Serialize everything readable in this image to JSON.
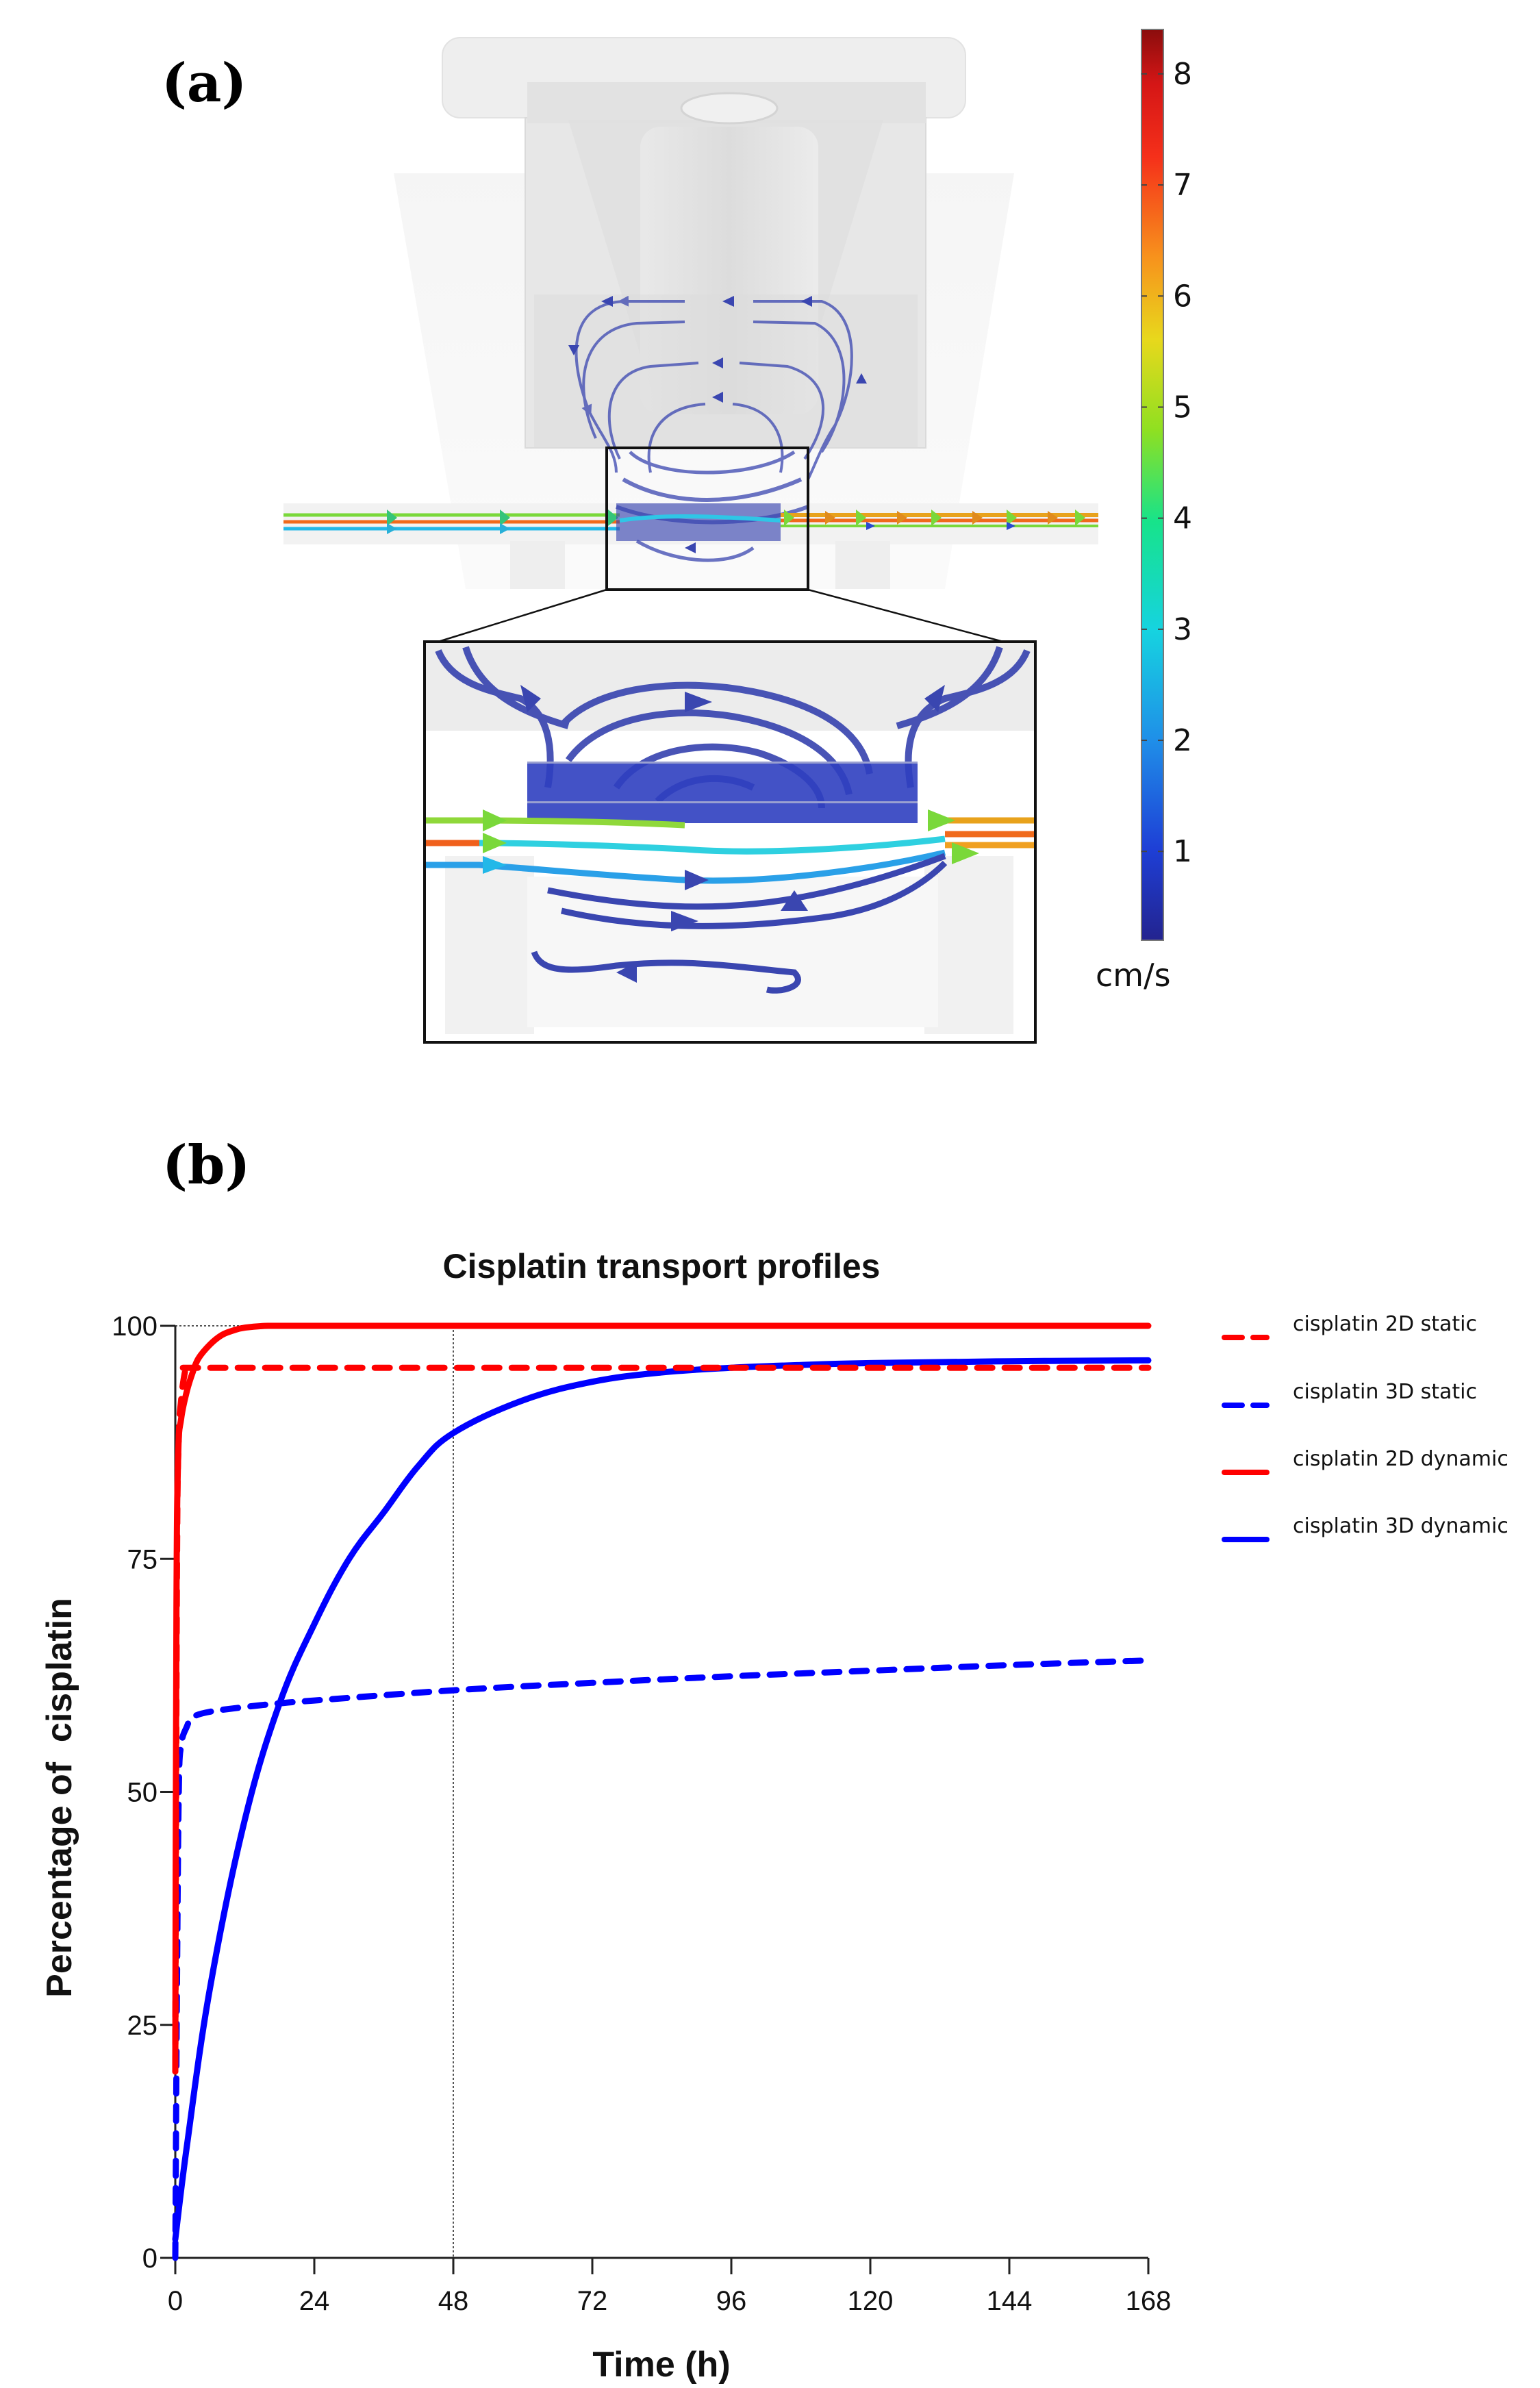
{
  "panel_a": {
    "label": "(a)",
    "colorbar": {
      "unit": "cm/s",
      "ticks": [
        "8",
        "7",
        "6",
        "5",
        "4",
        "3",
        "2",
        "1"
      ],
      "min": 0.2,
      "max": 8.4,
      "colors": [
        "#23238f",
        "#1e3fd6",
        "#1f8fe8",
        "#16d3e0",
        "#17e38a",
        "#8fe021",
        "#e8d81c",
        "#f7921c",
        "#f5301a",
        "#d51616",
        "#8b0d0d"
      ]
    },
    "streamline_colors": {
      "slow": "#3a46b0",
      "inlet_green": "#7ad83a",
      "inlet_orange": "#f06a1c",
      "inlet_cyan": "#22b8e8"
    }
  },
  "panel_b": {
    "label": "(b)"
  },
  "chart_data": {
    "type": "line",
    "title": "Cisplatin transport profiles",
    "xlabel": "Time (h)",
    "ylabel": "Percentage of  cisplatin",
    "xlim": [
      0,
      168
    ],
    "ylim": [
      0,
      100
    ],
    "xticks": [
      "0",
      "24",
      "48",
      "72",
      "96",
      "120",
      "144",
      "168"
    ],
    "yticks": [
      "0",
      "25",
      "50",
      "75",
      "100"
    ],
    "reference_lines": {
      "vertical_x": 48,
      "horizontal_y": 100,
      "style": "dotted"
    },
    "legend_position": "right",
    "series": [
      {
        "name": "cisplatin 2D static",
        "color": "#ff0000",
        "style": "dashed",
        "x": [
          0,
          0.3,
          0.6,
          1,
          1.5,
          2,
          3,
          24,
          48,
          72,
          96,
          120,
          144,
          168
        ],
        "values": [
          20,
          75,
          88,
          92,
          94.5,
          95.5,
          95.5,
          95.5,
          95.5,
          95.5,
          95.5,
          95.5,
          95.5,
          95.5
        ]
      },
      {
        "name": "cisplatin 3D static",
        "color": "#0000ff",
        "style": "dashed",
        "x": [
          0,
          0.3,
          0.6,
          1,
          2,
          3,
          6,
          12,
          18,
          24,
          48,
          72,
          96,
          120,
          144,
          168
        ],
        "values": [
          0,
          30,
          50,
          55,
          57,
          58,
          58.6,
          59.1,
          59.5,
          59.8,
          60.9,
          61.7,
          62.4,
          63.0,
          63.6,
          64.1
        ]
      },
      {
        "name": "cisplatin 2D dynamic",
        "color": "#ff0000",
        "style": "solid",
        "x": [
          0,
          0.2,
          0.5,
          1,
          2,
          3,
          4,
          6,
          8,
          10,
          12,
          16,
          24,
          48,
          72,
          96,
          120,
          144,
          168
        ],
        "values": [
          20,
          70,
          86,
          90,
          93,
          95,
          96.5,
          98,
          99,
          99.5,
          99.8,
          100,
          100,
          100,
          100,
          100,
          100,
          100,
          100
        ]
      },
      {
        "name": "cisplatin 3D dynamic",
        "color": "#0000ff",
        "style": "solid",
        "x": [
          0,
          2,
          6,
          12,
          18,
          24,
          30,
          36,
          42,
          48,
          60,
          72,
          84,
          96,
          108,
          120,
          144,
          168
        ],
        "values": [
          2,
          12,
          29,
          47,
          59.5,
          68,
          75,
          80,
          85,
          88.5,
          92,
          94,
          95,
          95.5,
          95.8,
          96,
          96.2,
          96.3
        ]
      }
    ]
  }
}
